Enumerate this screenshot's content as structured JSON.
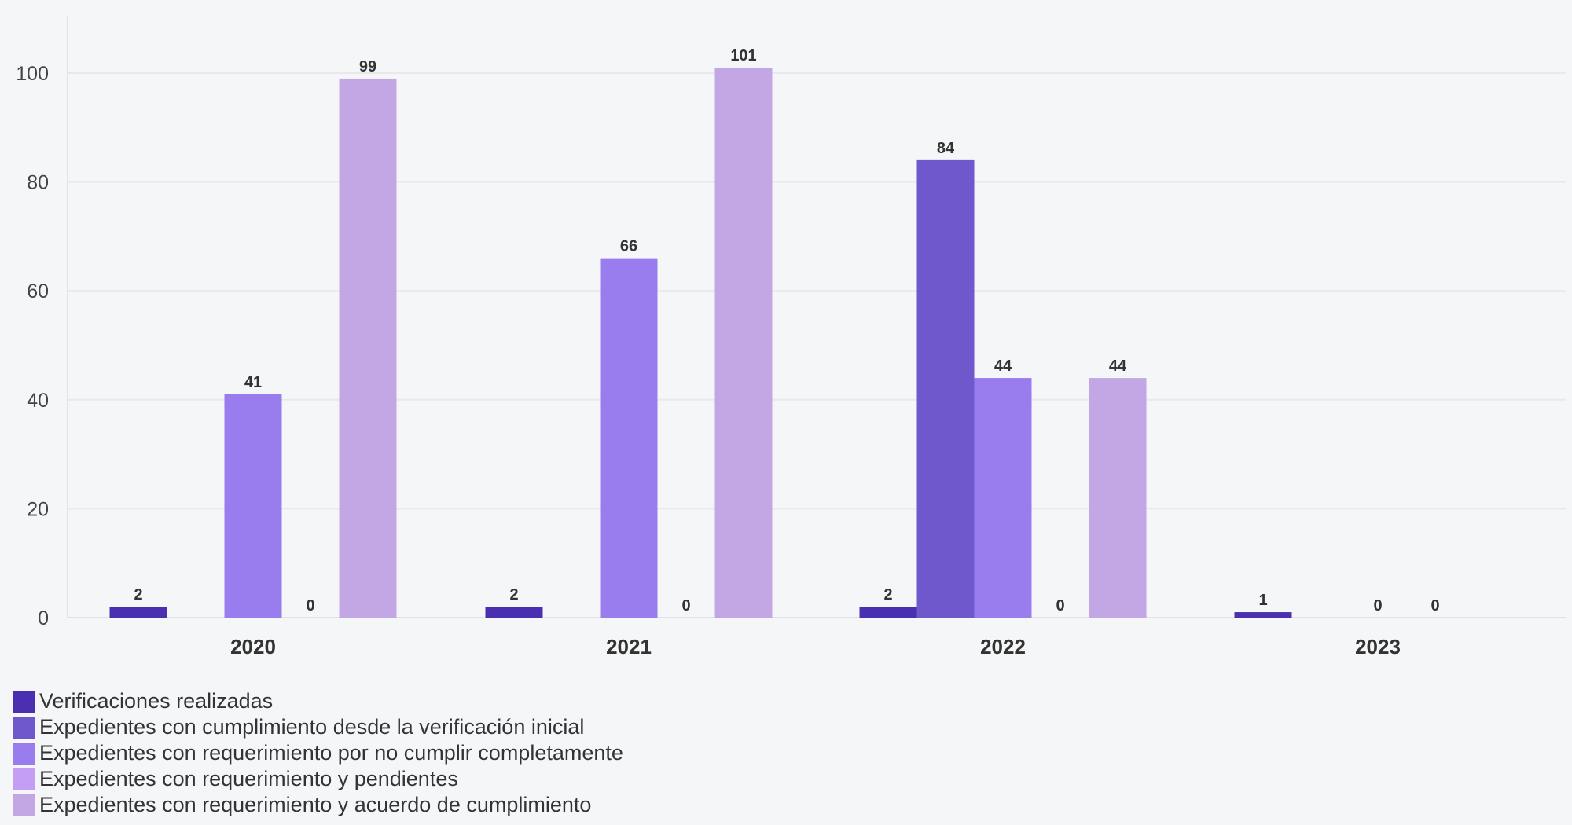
{
  "chart_data": {
    "type": "bar",
    "categories": [
      "2020",
      "2021",
      "2022",
      "2023"
    ],
    "series": [
      {
        "name": "Verificaciones realizadas",
        "color": "#4a2fb0",
        "values": [
          2,
          2,
          2,
          1
        ]
      },
      {
        "name": "Expedientes con cumplimiento desde la verificación inicial",
        "color": "#6f57cc",
        "values": [
          null,
          null,
          84,
          null
        ]
      },
      {
        "name": "Expedientes con requerimiento por no cumplir completamente",
        "color": "#997cee",
        "values": [
          41,
          66,
          44,
          0
        ]
      },
      {
        "name": "Expedientes con requerimiento y pendientes",
        "color": "#c49ef5",
        "values": [
          0,
          0,
          0,
          0
        ]
      },
      {
        "name": "Expedientes con requerimiento y acuerdo de cumplimiento",
        "color": "#c3a7e4",
        "values": [
          99,
          101,
          44,
          null
        ]
      }
    ],
    "y_ticks": [
      0,
      20,
      40,
      60,
      80,
      100
    ],
    "ylim": [
      0,
      110
    ],
    "grid": true,
    "legend_position": "bottom-left",
    "title": "",
    "xlabel": "",
    "ylabel": ""
  }
}
